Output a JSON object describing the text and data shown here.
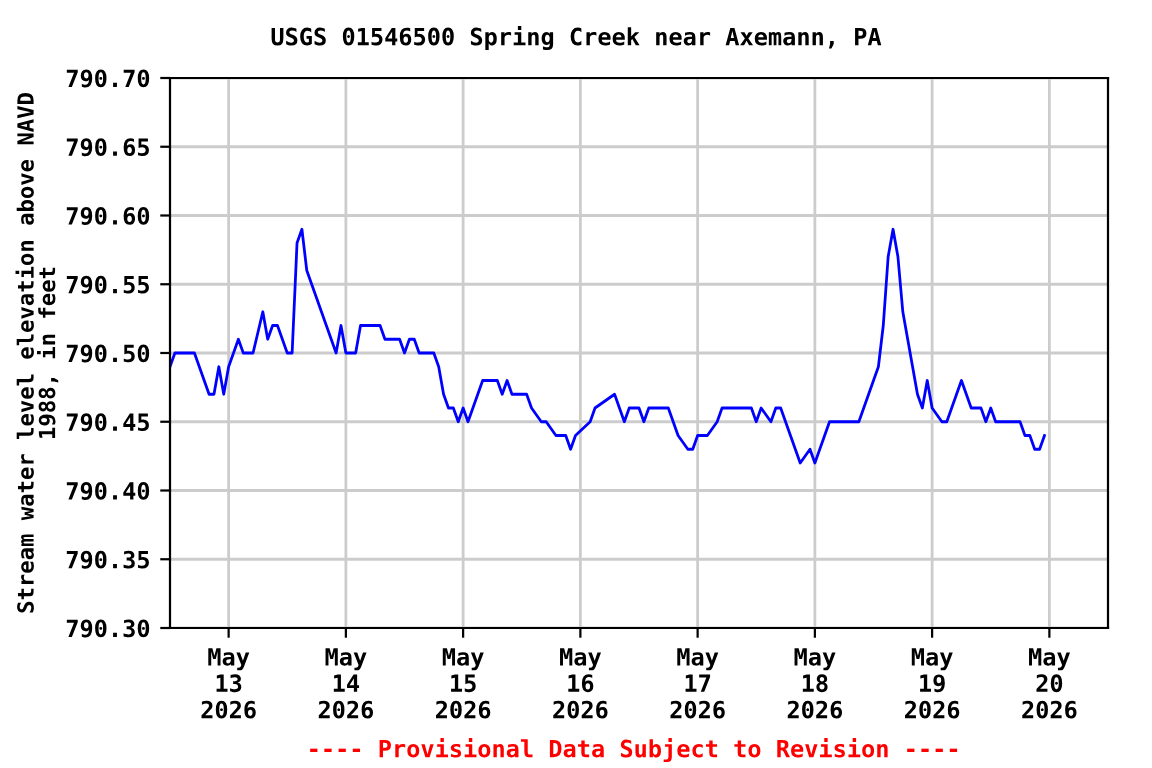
{
  "chart_data": {
    "type": "line",
    "title": "USGS 01546500 Spring Creek near Axemann, PA",
    "ylabel": "Stream water level elevation above NAVD\n1988, in feet",
    "annotations": [
      "---- Provisional Data Subject to Revision ----"
    ],
    "x": [
      "2026-05-12T12:00",
      "2026-05-12T13:00",
      "2026-05-12T17:00",
      "2026-05-12T18:00",
      "2026-05-12T19:00",
      "2026-05-12T20:00",
      "2026-05-12T21:00",
      "2026-05-12T22:00",
      "2026-05-12T23:00",
      "2026-05-13T00:00",
      "2026-05-13T01:00",
      "2026-05-13T02:00",
      "2026-05-13T03:00",
      "2026-05-13T05:00",
      "2026-05-13T07:00",
      "2026-05-13T08:00",
      "2026-05-13T09:00",
      "2026-05-13T10:00",
      "2026-05-13T11:00",
      "2026-05-13T12:00",
      "2026-05-13T13:00",
      "2026-05-13T14:00",
      "2026-05-13T15:00",
      "2026-05-13T16:00",
      "2026-05-13T17:00",
      "2026-05-13T18:00",
      "2026-05-13T19:00",
      "2026-05-13T20:00",
      "2026-05-13T21:00",
      "2026-05-13T22:00",
      "2026-05-13T23:00",
      "2026-05-14T00:00",
      "2026-05-14T02:00",
      "2026-05-14T03:00",
      "2026-05-14T07:00",
      "2026-05-14T08:00",
      "2026-05-14T11:00",
      "2026-05-14T12:00",
      "2026-05-14T13:00",
      "2026-05-14T14:00",
      "2026-05-14T15:00",
      "2026-05-14T18:00",
      "2026-05-14T19:00",
      "2026-05-14T20:00",
      "2026-05-14T21:00",
      "2026-05-14T22:00",
      "2026-05-14T23:00",
      "2026-05-15T00:00",
      "2026-05-15T01:00",
      "2026-05-15T02:00",
      "2026-05-15T03:00",
      "2026-05-15T04:00",
      "2026-05-15T07:00",
      "2026-05-15T08:00",
      "2026-05-15T09:00",
      "2026-05-15T10:00",
      "2026-05-15T13:00",
      "2026-05-15T14:00",
      "2026-05-15T16:00",
      "2026-05-15T17:00",
      "2026-05-15T19:00",
      "2026-05-15T21:00",
      "2026-05-15T22:00",
      "2026-05-15T23:00",
      "2026-05-16T02:00",
      "2026-05-16T03:00",
      "2026-05-16T07:00",
      "2026-05-16T08:00",
      "2026-05-16T09:00",
      "2026-05-16T10:00",
      "2026-05-16T12:00",
      "2026-05-16T13:00",
      "2026-05-16T14:00",
      "2026-05-16T18:00",
      "2026-05-16T19:00",
      "2026-05-16T20:00",
      "2026-05-16T22:00",
      "2026-05-16T23:00",
      "2026-05-17T00:00",
      "2026-05-17T02:00",
      "2026-05-17T04:00",
      "2026-05-17T05:00",
      "2026-05-17T11:00",
      "2026-05-17T12:00",
      "2026-05-17T13:00",
      "2026-05-17T15:00",
      "2026-05-17T16:00",
      "2026-05-17T17:00",
      "2026-05-17T18:00",
      "2026-05-17T19:00",
      "2026-05-17T20:00",
      "2026-05-17T21:00",
      "2026-05-17T23:00",
      "2026-05-18T00:00",
      "2026-05-18T01:00",
      "2026-05-18T02:00",
      "2026-05-18T03:00",
      "2026-05-18T09:00",
      "2026-05-18T10:00",
      "2026-05-18T11:00",
      "2026-05-18T12:00",
      "2026-05-18T13:00",
      "2026-05-18T14:00",
      "2026-05-18T15:00",
      "2026-05-18T16:00",
      "2026-05-18T17:00",
      "2026-05-18T18:00",
      "2026-05-18T19:00",
      "2026-05-18T20:00",
      "2026-05-18T21:00",
      "2026-05-18T22:00",
      "2026-05-18T23:00",
      "2026-05-19T00:00",
      "2026-05-19T02:00",
      "2026-05-19T03:00",
      "2026-05-19T04:00",
      "2026-05-19T05:00",
      "2026-05-19T06:00",
      "2026-05-19T07:00",
      "2026-05-19T08:00",
      "2026-05-19T10:00",
      "2026-05-19T11:00",
      "2026-05-19T12:00",
      "2026-05-19T13:00",
      "2026-05-19T18:00",
      "2026-05-19T19:00",
      "2026-05-19T20:00",
      "2026-05-19T21:00",
      "2026-05-19T22:00",
      "2026-05-19T23:00"
    ],
    "series": [
      {
        "color": "#0000ff",
        "values": [
          790.49,
          790.5,
          790.5,
          790.49,
          790.48,
          790.47,
          790.47,
          790.49,
          790.47,
          790.49,
          790.5,
          790.51,
          790.5,
          790.5,
          790.53,
          790.51,
          790.52,
          790.52,
          790.51,
          790.5,
          790.5,
          790.58,
          790.59,
          790.56,
          790.55,
          790.54,
          790.53,
          790.52,
          790.51,
          790.5,
          790.52,
          790.5,
          790.5,
          790.52,
          790.52,
          790.51,
          790.51,
          790.5,
          790.51,
          790.51,
          790.5,
          790.5,
          790.49,
          790.47,
          790.46,
          790.46,
          790.45,
          790.46,
          790.45,
          790.46,
          790.47,
          790.48,
          790.48,
          790.47,
          790.48,
          790.47,
          790.47,
          790.46,
          790.45,
          790.45,
          790.44,
          790.44,
          790.43,
          790.44,
          790.45,
          790.46,
          790.47,
          790.46,
          790.45,
          790.46,
          790.46,
          790.45,
          790.46,
          790.46,
          790.45,
          790.44,
          790.43,
          790.43,
          790.44,
          790.44,
          790.45,
          790.46,
          790.46,
          790.45,
          790.46,
          790.45,
          790.46,
          790.46,
          790.45,
          790.44,
          790.43,
          790.42,
          790.43,
          790.42,
          790.43,
          790.44,
          790.45,
          790.45,
          790.46,
          790.47,
          790.48,
          790.49,
          790.52,
          790.57,
          790.59,
          790.57,
          790.53,
          790.51,
          790.49,
          790.47,
          790.46,
          790.48,
          790.46,
          790.45,
          790.45,
          790.46,
          790.47,
          790.48,
          790.47,
          790.46,
          790.46,
          790.45,
          790.46,
          790.45,
          790.45,
          790.44,
          790.44,
          790.43,
          790.43,
          790.44
        ]
      }
    ],
    "xlim": [
      "2026-05-12T12:00",
      "2026-05-20T12:00"
    ],
    "xticks": [
      {
        "value": "2026-05-13",
        "label": "May\n13\n2026"
      },
      {
        "value": "2026-05-14",
        "label": "May\n14\n2026"
      },
      {
        "value": "2026-05-15",
        "label": "May\n15\n2026"
      },
      {
        "value": "2026-05-16",
        "label": "May\n16\n2026"
      },
      {
        "value": "2026-05-17",
        "label": "May\n17\n2026"
      },
      {
        "value": "2026-05-18",
        "label": "May\n18\n2026"
      },
      {
        "value": "2026-05-19",
        "label": "May\n19\n2026"
      },
      {
        "value": "2026-05-20",
        "label": "May\n20\n2026"
      }
    ],
    "ylim": [
      790.3,
      790.7
    ],
    "yticks": [
      {
        "value": 790.3,
        "label": "790.30"
      },
      {
        "value": 790.35,
        "label": "790.35"
      },
      {
        "value": 790.4,
        "label": "790.40"
      },
      {
        "value": 790.45,
        "label": "790.45"
      },
      {
        "value": 790.5,
        "label": "790.50"
      },
      {
        "value": 790.55,
        "label": "790.55"
      },
      {
        "value": 790.6,
        "label": "790.60"
      },
      {
        "value": 790.65,
        "label": "790.65"
      },
      {
        "value": 790.7,
        "label": "790.70"
      }
    ],
    "grid": true
  }
}
